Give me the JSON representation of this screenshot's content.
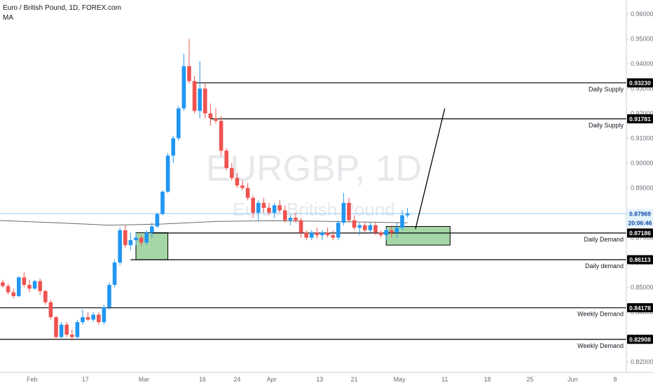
{
  "header": {
    "title": "Euro / British Pound, 1D, FOREX.com",
    "indicator": "MA"
  },
  "watermark": {
    "symbol": "EURGBP, 1D",
    "name": "Euro / British Pound"
  },
  "colors": {
    "up": "#2196f3",
    "down": "#ef5350",
    "ma": "#6b6b6b",
    "level": "#000000",
    "zone_fill": "#a5d6a7",
    "price_line": "#90caf9",
    "axis_text": "#6a6d78"
  },
  "chart_data": {
    "type": "candlestick",
    "ylim": [
      0.8165,
      0.965
    ],
    "y_ticks": [
      "0.82000",
      "0.83000",
      "0.84000",
      "0.85000",
      "0.86000",
      "0.87000",
      "0.88000",
      "0.89000",
      "0.90000",
      "0.91000",
      "0.92000",
      "0.93000",
      "0.94000",
      "0.95000",
      "0.96000"
    ],
    "x_ticks": [
      "Feb",
      "17",
      "Mar",
      "16",
      "24",
      "Apr",
      "13",
      "21",
      "May",
      "11",
      "18",
      "25",
      "Jun",
      "8"
    ],
    "current_price": "0.87969",
    "countdown": "20:06:46",
    "candles": [
      {
        "o": 0.852,
        "h": 0.853,
        "l": 0.85,
        "c": 0.8505
      },
      {
        "o": 0.8505,
        "h": 0.8515,
        "l": 0.847,
        "c": 0.848
      },
      {
        "o": 0.848,
        "h": 0.8495,
        "l": 0.8455,
        "c": 0.8465
      },
      {
        "o": 0.8465,
        "h": 0.8545,
        "l": 0.846,
        "c": 0.854
      },
      {
        "o": 0.854,
        "h": 0.856,
        "l": 0.85,
        "c": 0.851
      },
      {
        "o": 0.851,
        "h": 0.853,
        "l": 0.848,
        "c": 0.8495
      },
      {
        "o": 0.8495,
        "h": 0.853,
        "l": 0.849,
        "c": 0.8525
      },
      {
        "o": 0.8525,
        "h": 0.8535,
        "l": 0.847,
        "c": 0.8485
      },
      {
        "o": 0.8485,
        "h": 0.849,
        "l": 0.843,
        "c": 0.844
      },
      {
        "o": 0.844,
        "h": 0.845,
        "l": 0.837,
        "c": 0.838
      },
      {
        "o": 0.838,
        "h": 0.8385,
        "l": 0.829,
        "c": 0.83
      },
      {
        "o": 0.83,
        "h": 0.836,
        "l": 0.8295,
        "c": 0.835
      },
      {
        "o": 0.835,
        "h": 0.836,
        "l": 0.83,
        "c": 0.831
      },
      {
        "o": 0.831,
        "h": 0.833,
        "l": 0.8285,
        "c": 0.83
      },
      {
        "o": 0.83,
        "h": 0.837,
        "l": 0.829,
        "c": 0.836
      },
      {
        "o": 0.836,
        "h": 0.841,
        "l": 0.835,
        "c": 0.838
      },
      {
        "o": 0.838,
        "h": 0.84,
        "l": 0.8365,
        "c": 0.837
      },
      {
        "o": 0.837,
        "h": 0.84,
        "l": 0.836,
        "c": 0.839
      },
      {
        "o": 0.839,
        "h": 0.84,
        "l": 0.835,
        "c": 0.836
      },
      {
        "o": 0.836,
        "h": 0.843,
        "l": 0.835,
        "c": 0.842
      },
      {
        "o": 0.842,
        "h": 0.852,
        "l": 0.841,
        "c": 0.851
      },
      {
        "o": 0.851,
        "h": 0.861,
        "l": 0.85,
        "c": 0.86
      },
      {
        "o": 0.86,
        "h": 0.874,
        "l": 0.859,
        "c": 0.873
      },
      {
        "o": 0.873,
        "h": 0.875,
        "l": 0.866,
        "c": 0.867
      },
      {
        "o": 0.867,
        "h": 0.872,
        "l": 0.865,
        "c": 0.869
      },
      {
        "o": 0.869,
        "h": 0.872,
        "l": 0.867,
        "c": 0.87
      },
      {
        "o": 0.87,
        "h": 0.871,
        "l": 0.8665,
        "c": 0.868
      },
      {
        "o": 0.868,
        "h": 0.873,
        "l": 0.867,
        "c": 0.872
      },
      {
        "o": 0.872,
        "h": 0.876,
        "l": 0.87,
        "c": 0.8745
      },
      {
        "o": 0.8745,
        "h": 0.88,
        "l": 0.874,
        "c": 0.8795
      },
      {
        "o": 0.8795,
        "h": 0.889,
        "l": 0.879,
        "c": 0.8885
      },
      {
        "o": 0.8885,
        "h": 0.904,
        "l": 0.888,
        "c": 0.903
      },
      {
        "o": 0.903,
        "h": 0.911,
        "l": 0.9,
        "c": 0.91
      },
      {
        "o": 0.91,
        "h": 0.923,
        "l": 0.909,
        "c": 0.922
      },
      {
        "o": 0.922,
        "h": 0.944,
        "l": 0.921,
        "c": 0.939
      },
      {
        "o": 0.939,
        "h": 0.95,
        "l": 0.932,
        "c": 0.933
      },
      {
        "o": 0.933,
        "h": 0.935,
        "l": 0.92,
        "c": 0.921
      },
      {
        "o": 0.921,
        "h": 0.941,
        "l": 0.918,
        "c": 0.93
      },
      {
        "o": 0.93,
        "h": 0.932,
        "l": 0.918,
        "c": 0.92
      },
      {
        "o": 0.92,
        "h": 0.924,
        "l": 0.915,
        "c": 0.918
      },
      {
        "o": 0.918,
        "h": 0.922,
        "l": 0.916,
        "c": 0.917
      },
      {
        "o": 0.917,
        "h": 0.919,
        "l": 0.903,
        "c": 0.905
      },
      {
        "o": 0.905,
        "h": 0.906,
        "l": 0.897,
        "c": 0.898
      },
      {
        "o": 0.898,
        "h": 0.9,
        "l": 0.893,
        "c": 0.894
      },
      {
        "o": 0.894,
        "h": 0.896,
        "l": 0.89,
        "c": 0.891
      },
      {
        "o": 0.891,
        "h": 0.893,
        "l": 0.889,
        "c": 0.89
      },
      {
        "o": 0.89,
        "h": 0.892,
        "l": 0.885,
        "c": 0.886
      },
      {
        "o": 0.886,
        "h": 0.887,
        "l": 0.878,
        "c": 0.88
      },
      {
        "o": 0.88,
        "h": 0.885,
        "l": 0.877,
        "c": 0.884
      },
      {
        "o": 0.884,
        "h": 0.886,
        "l": 0.88,
        "c": 0.882
      },
      {
        "o": 0.882,
        "h": 0.884,
        "l": 0.879,
        "c": 0.88
      },
      {
        "o": 0.88,
        "h": 0.884,
        "l": 0.878,
        "c": 0.883
      },
      {
        "o": 0.883,
        "h": 0.885,
        "l": 0.88,
        "c": 0.881
      },
      {
        "o": 0.881,
        "h": 0.883,
        "l": 0.876,
        "c": 0.877
      },
      {
        "o": 0.877,
        "h": 0.879,
        "l": 0.875,
        "c": 0.878
      },
      {
        "o": 0.878,
        "h": 0.88,
        "l": 0.876,
        "c": 0.877
      },
      {
        "o": 0.877,
        "h": 0.878,
        "l": 0.87,
        "c": 0.872
      },
      {
        "o": 0.872,
        "h": 0.873,
        "l": 0.869,
        "c": 0.87
      },
      {
        "o": 0.87,
        "h": 0.873,
        "l": 0.869,
        "c": 0.872
      },
      {
        "o": 0.872,
        "h": 0.874,
        "l": 0.8695,
        "c": 0.871
      },
      {
        "o": 0.871,
        "h": 0.873,
        "l": 0.869,
        "c": 0.872
      },
      {
        "o": 0.872,
        "h": 0.874,
        "l": 0.87,
        "c": 0.871
      },
      {
        "o": 0.871,
        "h": 0.873,
        "l": 0.869,
        "c": 0.87
      },
      {
        "o": 0.87,
        "h": 0.877,
        "l": 0.869,
        "c": 0.876
      },
      {
        "o": 0.876,
        "h": 0.888,
        "l": 0.875,
        "c": 0.884
      },
      {
        "o": 0.884,
        "h": 0.886,
        "l": 0.876,
        "c": 0.877
      },
      {
        "o": 0.877,
        "h": 0.879,
        "l": 0.873,
        "c": 0.874
      },
      {
        "o": 0.874,
        "h": 0.876,
        "l": 0.871,
        "c": 0.875
      },
      {
        "o": 0.875,
        "h": 0.876,
        "l": 0.872,
        "c": 0.873
      },
      {
        "o": 0.873,
        "h": 0.876,
        "l": 0.872,
        "c": 0.875
      },
      {
        "o": 0.875,
        "h": 0.876,
        "l": 0.871,
        "c": 0.872
      },
      {
        "o": 0.872,
        "h": 0.873,
        "l": 0.87,
        "c": 0.871
      },
      {
        "o": 0.871,
        "h": 0.874,
        "l": 0.869,
        "c": 0.873
      },
      {
        "o": 0.873,
        "h": 0.875,
        "l": 0.87,
        "c": 0.872
      },
      {
        "o": 0.872,
        "h": 0.876,
        "l": 0.87,
        "c": 0.874
      },
      {
        "o": 0.874,
        "h": 0.881,
        "l": 0.873,
        "c": 0.879
      },
      {
        "o": 0.879,
        "h": 0.882,
        "l": 0.878,
        "c": 0.8797
      }
    ],
    "moving_average": {
      "name": "MA",
      "points": [
        {
          "i": -2,
          "v": 0.877
        },
        {
          "i": 10,
          "v": 0.876
        },
        {
          "i": 20,
          "v": 0.875
        },
        {
          "i": 30,
          "v": 0.8755
        },
        {
          "i": 40,
          "v": 0.8765
        },
        {
          "i": 50,
          "v": 0.8768
        },
        {
          "i": 60,
          "v": 0.8766
        },
        {
          "i": 70,
          "v": 0.8762
        },
        {
          "i": 76,
          "v": 0.876
        }
      ]
    },
    "levels": [
      {
        "price": 0.9323,
        "label": "Daily Supply",
        "tag": "0.93230",
        "from": 36
      },
      {
        "price": 0.91781,
        "label": "Daily Supply",
        "tag": "0.91781",
        "from": 39
      },
      {
        "price": 0.87186,
        "label": "Daily Demand",
        "tag": "0.87186",
        "from": 28
      },
      {
        "price": 0.86113,
        "label": "Daily demand",
        "tag": "0.86113",
        "from": 24
      },
      {
        "price": 0.84178,
        "label": "Weekly Demand",
        "tag": "0.84178",
        "from": -5
      },
      {
        "price": 0.82908,
        "label": "Weekly Demand",
        "tag": "0.82908",
        "from": -5
      }
    ],
    "zones": [
      {
        "x0": 25,
        "x1": 31,
        "y0": 0.8611,
        "y1": 0.872
      },
      {
        "x0": 72,
        "x1": 84,
        "y0": 0.867,
        "y1": 0.8745
      }
    ],
    "projection": {
      "from": {
        "i": 77.5,
        "v": 0.8735
      },
      "to": {
        "i": 83,
        "v": 0.922
      }
    }
  }
}
